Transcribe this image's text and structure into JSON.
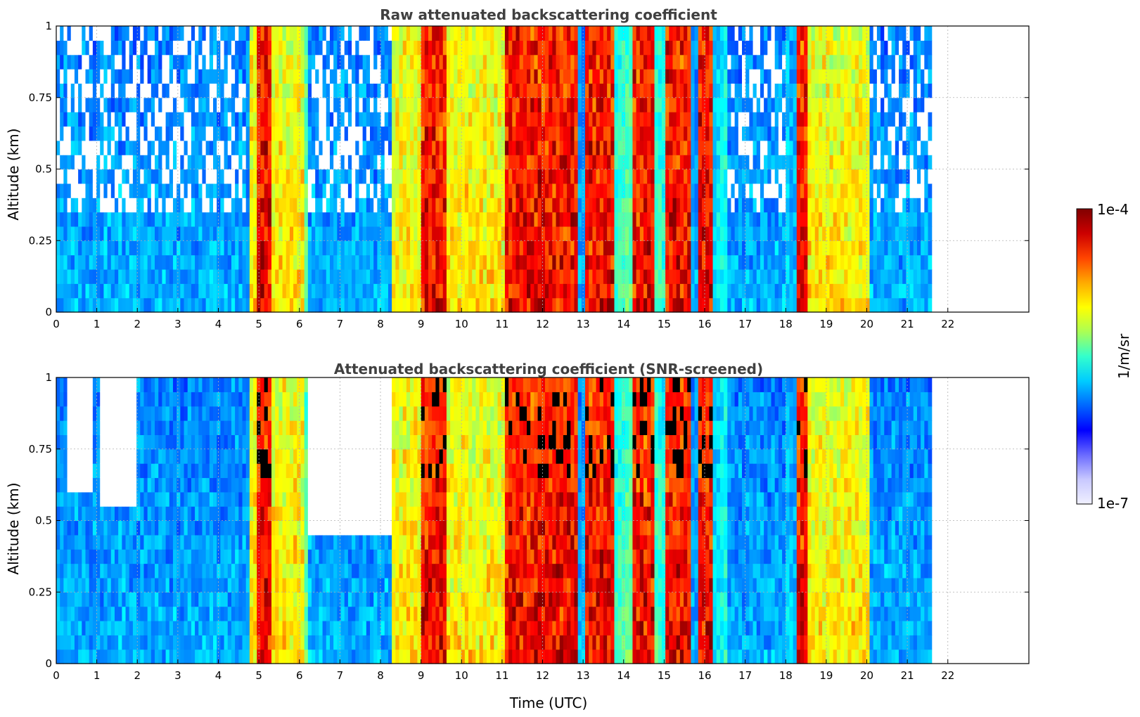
{
  "chart_data": [
    {
      "type": "heatmap",
      "title": "Raw attenuated backscattering coefficient",
      "xlabel": "",
      "ylabel": "Altitude (km)",
      "xlim": [
        0,
        24
      ],
      "ylim": [
        0,
        1
      ],
      "data_extent_x": [
        0,
        21.6
      ],
      "xticks": [
        "0",
        "1",
        "2",
        "3",
        "4",
        "5",
        "6",
        "7",
        "8",
        "9",
        "10",
        "11",
        "12",
        "13",
        "14",
        "15",
        "16",
        "17",
        "18",
        "19",
        "20",
        "21",
        "22"
      ],
      "yticks": [
        "0",
        "0.25",
        "0.5",
        "0.75",
        "1"
      ],
      "grid": true,
      "colormap": "jet",
      "clear_air_bands": [
        [
          0,
          1.0
        ],
        [
          1.0,
          4.6
        ],
        [
          6.2,
          8.2
        ],
        [
          16.5,
          18.0
        ],
        [
          20.0,
          21.6
        ]
      ],
      "aerosol_bands": [
        [
          4.7,
          6.1
        ],
        [
          8.2,
          9.2
        ],
        [
          9.5,
          11.0
        ],
        [
          18.5,
          20.0
        ]
      ],
      "strong_bands": [
        [
          4.95,
          5.3
        ],
        [
          9.0,
          9.6
        ],
        [
          11.0,
          12.8
        ],
        [
          13.0,
          13.7
        ],
        [
          14.2,
          14.7
        ],
        [
          15.0,
          15.6
        ],
        [
          15.8,
          16.2
        ],
        [
          18.2,
          18.5
        ]
      ],
      "noise_at_top": true
    },
    {
      "type": "heatmap",
      "title": "Attenuated backscattering coefficient (SNR-screened)",
      "xlabel": "Time (UTC)",
      "ylabel": "Altitude (km)",
      "xlim": [
        0,
        24
      ],
      "ylim": [
        0,
        1
      ],
      "data_extent_x": [
        0,
        21.6
      ],
      "xticks": [
        "0",
        "1",
        "2",
        "3",
        "4",
        "5",
        "6",
        "7",
        "8",
        "9",
        "10",
        "11",
        "12",
        "13",
        "14",
        "15",
        "16",
        "17",
        "18",
        "19",
        "20",
        "21",
        "22"
      ],
      "yticks": [
        "0",
        "0.25",
        "0.5",
        "0.75",
        "1"
      ],
      "grid": true,
      "colormap": "jet",
      "masked_regions": [
        [
          0.2,
          0.9,
          0.6
        ],
        [
          1.0,
          1.9,
          0.55
        ],
        [
          6.2,
          8.2,
          0.45
        ]
      ],
      "screened_black_spots": true
    }
  ],
  "colorbar": {
    "label": "1/m/sr",
    "max_label": "1e-4",
    "min_label": "1e-7",
    "scale": "log",
    "colors": [
      "#f0f0ff",
      "#c8c8ff",
      "#6a6aff",
      "#0000ff",
      "#0066ff",
      "#00ccff",
      "#33ffcc",
      "#aaff55",
      "#ffff00",
      "#ffaa00",
      "#ff4400",
      "#cc0000",
      "#800000"
    ]
  }
}
